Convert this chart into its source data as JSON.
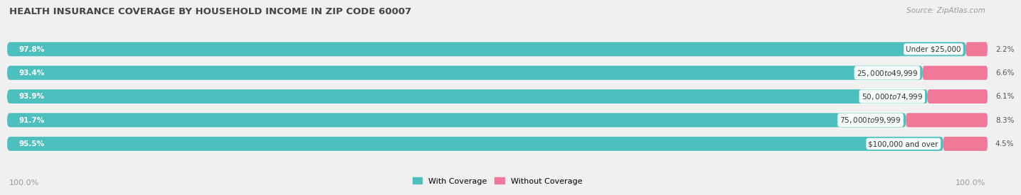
{
  "title": "HEALTH INSURANCE COVERAGE BY HOUSEHOLD INCOME IN ZIP CODE 60007",
  "source": "Source: ZipAtlas.com",
  "categories": [
    "Under $25,000",
    "$25,000 to $49,999",
    "$50,000 to $74,999",
    "$75,000 to $99,999",
    "$100,000 and over"
  ],
  "with_coverage": [
    97.8,
    93.4,
    93.9,
    91.7,
    95.5
  ],
  "without_coverage": [
    2.2,
    6.6,
    6.1,
    8.3,
    4.5
  ],
  "color_with": "#4DBFBF",
  "color_without": "#F07898",
  "bg_color": "#f0f0f0",
  "bar_row_bg": "#e2e2e2",
  "title_fontsize": 9.5,
  "source_fontsize": 7.5,
  "label_fontsize": 7.5,
  "tick_fontsize": 8,
  "legend_fontsize": 8,
  "bar_height": 0.6,
  "x_left_label": "100.0%",
  "x_right_label": "100.0%"
}
